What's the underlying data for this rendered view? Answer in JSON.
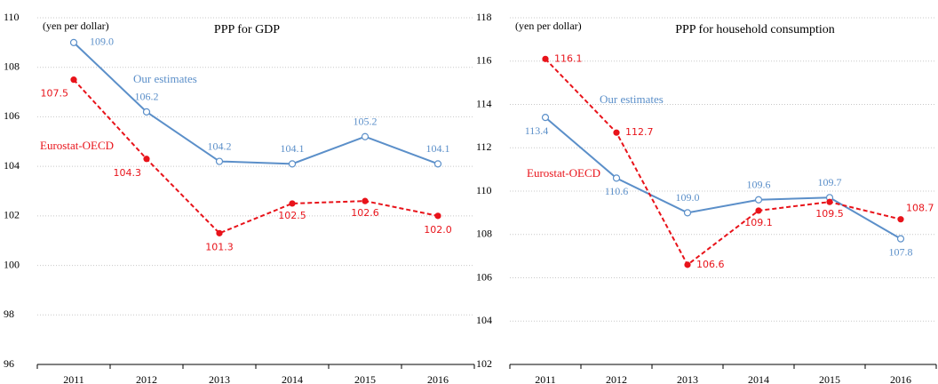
{
  "chart_data": [
    {
      "type": "line",
      "title": "PPP for GDP",
      "y_label": "(yen per dollar)",
      "categories": [
        "2011",
        "2012",
        "2013",
        "2014",
        "2015",
        "2016"
      ],
      "ylim": [
        96,
        110
      ],
      "yticks": [
        96,
        98,
        100,
        102,
        104,
        106,
        108,
        110
      ],
      "grid": true,
      "series": [
        {
          "name": "Our estimates",
          "color": "#5b8fc9",
          "dashed": false,
          "marker": "open",
          "values": [
            109.0,
            106.2,
            104.2,
            104.1,
            105.2,
            104.1
          ],
          "value_labels": [
            "109.0",
            "106.2",
            "104.2",
            "104.1",
            "105.2",
            "104.1"
          ]
        },
        {
          "name": "Eurostat-OECD",
          "color": "#e8131a",
          "dashed": true,
          "marker": "filled",
          "values": [
            107.5,
            104.3,
            101.3,
            102.5,
            102.6,
            102.0
          ],
          "value_labels": [
            "107.5",
            "104.3",
            "101.3",
            "102.5",
            "102.6",
            "102.0"
          ]
        }
      ]
    },
    {
      "type": "line",
      "title": "PPP for household consumption",
      "y_label": "(yen per dollar)",
      "categories": [
        "2011",
        "2012",
        "2013",
        "2014",
        "2015",
        "2016"
      ],
      "ylim": [
        102,
        118
      ],
      "yticks": [
        102,
        104,
        106,
        108,
        110,
        112,
        114,
        116,
        118
      ],
      "grid": true,
      "series": [
        {
          "name": "Our estimates",
          "color": "#5b8fc9",
          "dashed": false,
          "marker": "open",
          "values": [
            113.4,
            110.6,
            109.0,
            109.6,
            109.7,
            107.8
          ],
          "value_labels": [
            "113.4",
            "110.6",
            "109.0",
            "109.6",
            "109.7",
            "107.8"
          ]
        },
        {
          "name": "Eurostat-OECD",
          "color": "#e8131a",
          "dashed": true,
          "marker": "filled",
          "values": [
            116.1,
            112.7,
            106.6,
            109.1,
            109.5,
            108.7
          ],
          "value_labels": [
            "116.1",
            "112.7",
            "106.6",
            "109.1",
            "109.5",
            "108.7"
          ]
        }
      ]
    }
  ]
}
